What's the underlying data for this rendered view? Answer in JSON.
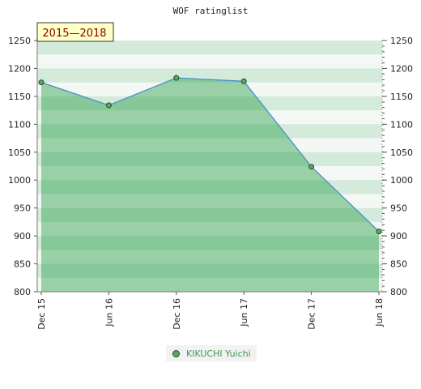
{
  "chart_data": {
    "type": "area",
    "title": "WOF ratinglist",
    "badge": "2015—2018",
    "categories": [
      "Dec 15",
      "Jun 16",
      "Dec 16",
      "Jun 17",
      "Dec 17",
      "Jun 18"
    ],
    "series": [
      {
        "name": "KIKUCHI Yuichi",
        "values": [
          1175,
          1134,
          1183,
          1177,
          1024,
          908
        ]
      }
    ],
    "ylim": [
      800,
      1250
    ],
    "yticks": [
      800,
      850,
      900,
      950,
      1000,
      1050,
      1100,
      1150,
      1200,
      1250
    ],
    "xlabel": "",
    "ylabel": "",
    "legend_position": "bottom-center",
    "colors": {
      "area_fill": "#79c28d",
      "line": "#4a90c8",
      "marker_fill": "#5fa36b",
      "marker_stroke": "#1d4f24",
      "legend_text": "#3d9a4a",
      "band_light": "#f3f8f4",
      "band_dark": "#d4eada"
    }
  }
}
